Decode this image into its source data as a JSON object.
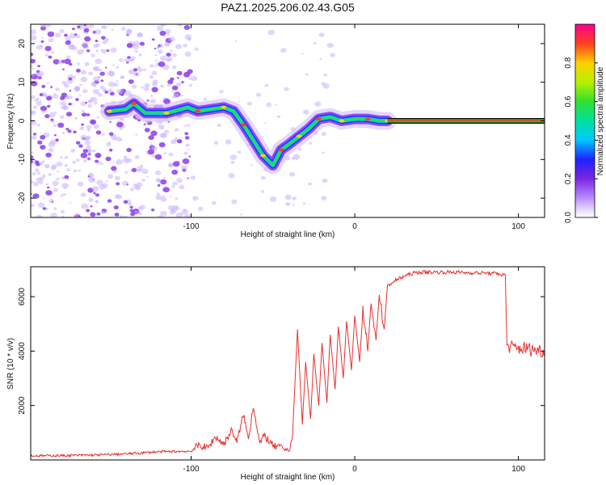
{
  "title": "PAZ1.2025.206.02.43.G05",
  "colors": {
    "snr_line": "#e83030",
    "carrier_line": "#111111",
    "sparse_noise": "#c9b2ff",
    "dense_noise": "#8a3cf0"
  },
  "chart_data": [
    {
      "type": "heatmap",
      "name": "spectrogram",
      "xlabel": "Height of straight line (km)",
      "ylabel": "Frequency (Hz)",
      "xlim": [
        -198,
        116
      ],
      "ylim": [
        -25,
        25
      ],
      "xticks": [
        -100,
        0,
        100
      ],
      "yticks": [
        -20,
        -10,
        0,
        10,
        20
      ],
      "x_tick_labels": [
        "-100",
        "0",
        "100"
      ],
      "y_tick_labels": [
        "-20",
        "-10",
        "0",
        "10",
        "20"
      ],
      "grid": false,
      "colorscale": "rainbow",
      "track": [
        {
          "x": -150,
          "y": 2.5
        },
        {
          "x": -140,
          "y": 3.0
        },
        {
          "x": -135,
          "y": 4.5
        },
        {
          "x": -128,
          "y": 2.0
        },
        {
          "x": -115,
          "y": 2.0
        },
        {
          "x": -102,
          "y": 3.5
        },
        {
          "x": -96,
          "y": 2.5
        },
        {
          "x": -88,
          "y": 3.0
        },
        {
          "x": -80,
          "y": 3.5
        },
        {
          "x": -74,
          "y": 2.5
        },
        {
          "x": -68,
          "y": -1.0
        },
        {
          "x": -62,
          "y": -5.0
        },
        {
          "x": -56,
          "y": -9.0
        },
        {
          "x": -50,
          "y": -11.5
        },
        {
          "x": -45,
          "y": -7.5
        },
        {
          "x": -40,
          "y": -6.0
        },
        {
          "x": -34,
          "y": -4.0
        },
        {
          "x": -28,
          "y": -2.0
        },
        {
          "x": -22,
          "y": 0.5
        },
        {
          "x": -15,
          "y": 1.0
        },
        {
          "x": -8,
          "y": 0.0
        },
        {
          "x": 0,
          "y": 0.5
        },
        {
          "x": 8,
          "y": 0.5
        },
        {
          "x": 15,
          "y": 0.0
        },
        {
          "x": 20,
          "y": 0.0
        }
      ],
      "carrier": {
        "x_start": 20,
        "x_end": 116,
        "y": 0
      }
    },
    {
      "type": "line",
      "name": "snr",
      "xlabel": "Height of straight line (km)",
      "ylabel": "SNR (10 * v/v)",
      "xlim": [
        -198,
        116
      ],
      "ylim": [
        0,
        7100
      ],
      "xticks": [
        -100,
        0,
        100
      ],
      "yticks": [
        2000,
        4000,
        6000
      ],
      "x_tick_labels": [
        "-100",
        "0",
        "100"
      ],
      "y_tick_labels": [
        "2000",
        "4000",
        "6000"
      ],
      "grid": false,
      "series": [
        {
          "x": [
            -198,
            -180,
            -160,
            -140,
            -120,
            -100,
            -95,
            -90,
            -85,
            -80,
            -75,
            -72,
            -68,
            -65,
            -62,
            -58,
            -55,
            -50,
            -45,
            -40,
            -38,
            -35,
            -32,
            -30,
            -27,
            -25,
            -22,
            -20,
            -17,
            -15,
            -12,
            -10,
            -7,
            -5,
            -2,
            0,
            3,
            5,
            8,
            10,
            13,
            15,
            18,
            20,
            25,
            30,
            35,
            40,
            45,
            50,
            60,
            70,
            80,
            85,
            88,
            90,
            92,
            93,
            95,
            100,
            105,
            110,
            116
          ],
          "y": [
            150,
            160,
            180,
            220,
            300,
            320,
            550,
            430,
            850,
            580,
            1100,
            620,
            1700,
            750,
            2000,
            600,
            900,
            500,
            450,
            350,
            900,
            4800,
            1300,
            3600,
            1500,
            3900,
            2000,
            4300,
            2100,
            4600,
            2600,
            4900,
            3000,
            5100,
            3300,
            5300,
            3600,
            5500,
            4000,
            5900,
            4400,
            6100,
            4800,
            6400,
            6600,
            6750,
            6850,
            6900,
            6900,
            6900,
            6900,
            6880,
            6870,
            6850,
            6850,
            6800,
            6800,
            4200,
            4150,
            4100,
            4100,
            4050,
            4000
          ]
        }
      ]
    }
  ],
  "colorbar": {
    "label": "Normalized spectral amplitude",
    "ticks": [
      0,
      0.2,
      0.4,
      0.6,
      0.8
    ],
    "tick_labels": [
      "0.0",
      "0.2",
      "0.4",
      "0.6",
      "0.8"
    ]
  }
}
